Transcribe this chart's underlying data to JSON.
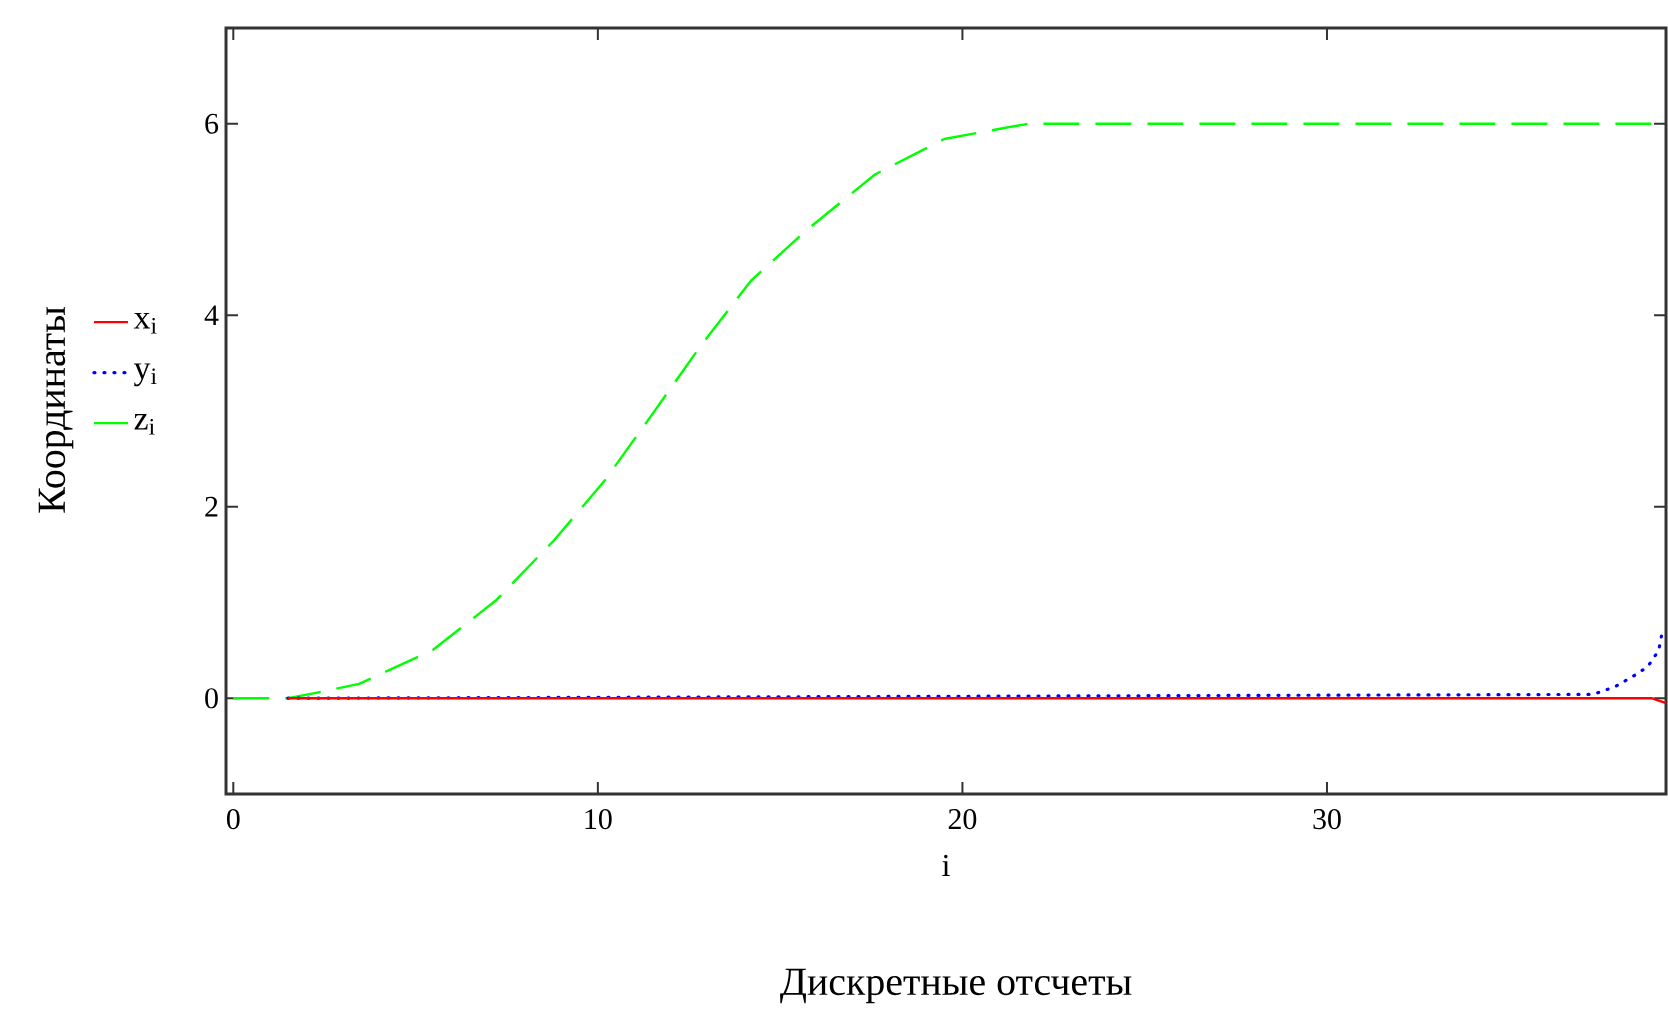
{
  "chart_data": {
    "type": "line",
    "xlabel": "i",
    "ylabel": "Координаты",
    "annotations": [
      "Дискретные отсчеты"
    ],
    "xlim": [
      -0.2,
      39.3
    ],
    "ylim": [
      -1,
      7
    ],
    "xticks": [
      0,
      10,
      20,
      30
    ],
    "yticks": [
      0,
      2,
      4,
      6
    ],
    "legend": "left",
    "grid": false,
    "marker": "none",
    "series": [
      {
        "name": "x$_{i}$",
        "color": "#ff0000",
        "line_style": "solid",
        "x": [
          1.5,
          38.9,
          39.3
        ],
        "values": [
          0,
          0,
          -0.05
        ]
      },
      {
        "name": "y$_{i}$",
        "color": "#0000ff",
        "line_style": "dotted",
        "x": [
          1.5,
          37.3,
          37.9,
          38.4,
          38.8,
          39.1,
          39.2
        ],
        "values": [
          0,
          0.04,
          0.12,
          0.23,
          0.33,
          0.5,
          0.7
        ]
      },
      {
        "name": "z$_{i}$",
        "color": "#00ff00",
        "line_style": "dashed",
        "x": [
          0,
          1.5,
          2.2,
          3.45,
          5.46,
          7.2,
          8.8,
          10.2,
          11.5,
          12.8,
          14.2,
          15.7,
          17.6,
          19.5,
          21.8,
          39.3
        ],
        "values": [
          0,
          0,
          0.05,
          0.15,
          0.5,
          1.02,
          1.65,
          2.28,
          2.97,
          3.67,
          4.36,
          4.88,
          5.47,
          5.84,
          6.0,
          6.0
        ]
      }
    ]
  }
}
